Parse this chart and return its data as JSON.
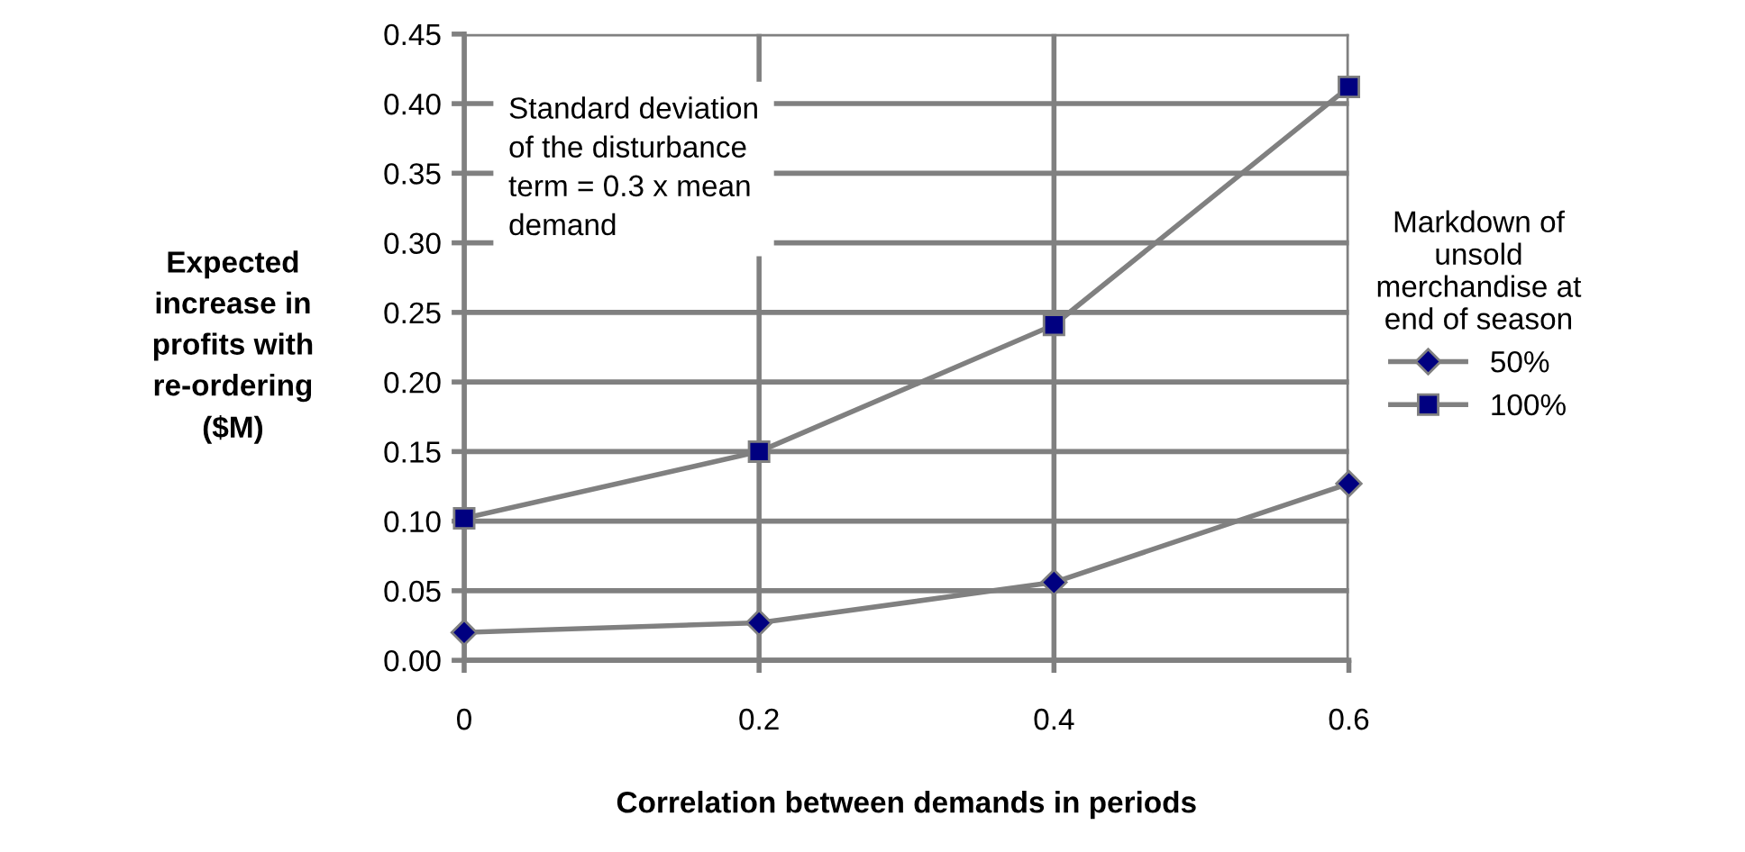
{
  "chart_data": {
    "type": "line",
    "xlabel": "Correlation between demands in periods",
    "ylabel": "Expected\nincrease in\nprofits with\nre-ordering\n($M)",
    "legend_title": "Markdown of\nunsold\nmerchandise at\nend of season",
    "x": [
      0,
      0.2,
      0.4,
      0.6
    ],
    "series": [
      {
        "name": "50%",
        "color": "#000080",
        "values": [
          0.02,
          0.027,
          0.056,
          0.127
        ],
        "marker": "diamond"
      },
      {
        "name": "100%",
        "color": "#000080",
        "values": [
          0.102,
          0.15,
          0.241,
          0.412
        ],
        "marker": "square"
      }
    ],
    "xlim": [
      0,
      0.6
    ],
    "xticks": [
      0,
      0.2,
      0.4,
      0.6
    ],
    "ylim": [
      0,
      0.45
    ],
    "yticks": [
      {
        "value": 0,
        "label": "0.00"
      },
      {
        "value": 0.05,
        "label": "0.05"
      },
      {
        "value": 0.1,
        "label": "0.10"
      },
      {
        "value": 0.15,
        "label": "0.15"
      },
      {
        "value": 0.2,
        "label": "0.20"
      },
      {
        "value": 0.25,
        "label": "0.25"
      },
      {
        "value": 0.3,
        "label": "0.30"
      },
      {
        "value": 0.35,
        "label": "0.35"
      },
      {
        "value": 0.4,
        "label": "0.40"
      },
      {
        "value": 0.45,
        "label": "0.45"
      }
    ],
    "grid": true,
    "legend": "right",
    "annotations": [
      "Standard deviation\nof the disturbance\nterm = 0.3 x mean\ndemand"
    ]
  }
}
